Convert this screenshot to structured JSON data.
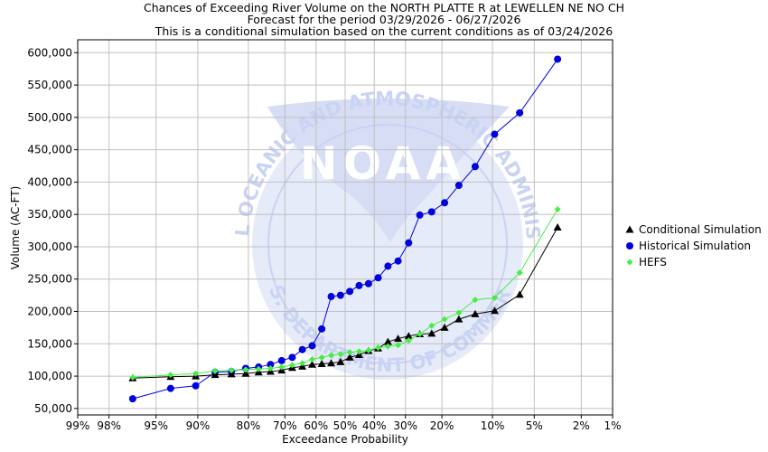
{
  "title_lines": [
    "Chances of Exceeding River Volume on the NORTH PLATTE R at LEWELLEN NE NO CH",
    "Forecast for the period 03/29/2026 - 06/27/2026",
    "This is a conditional simulation based on the current conditions as of 03/24/2026"
  ],
  "watermark": {
    "logo_text": "NOAA",
    "ring_top": "NATIONAL OCEANIC AND ATMOSPHERIC ADMINISTRATION",
    "ring_bottom": "U.S. DEPARTMENT OF COMMERCE",
    "colors": {
      "ring": "#c9d3f2",
      "bird": "#d6ddf5",
      "wave": "#e6ebf9"
    }
  },
  "chart_data": {
    "type": "line",
    "xlabel": "Exceedance Probability",
    "ylabel": "Volume (AC-FT)",
    "x_scale": "normal-probability",
    "x_ticks": [
      99,
      98,
      95,
      90,
      80,
      70,
      60,
      50,
      40,
      30,
      20,
      10,
      5,
      2,
      1
    ],
    "x_tick_labels": [
      "99%",
      "98%",
      "95%",
      "90%",
      "80%",
      "70%",
      "60%",
      "50%",
      "40%",
      "30%",
      "20%",
      "10%",
      "5%",
      "2%",
      "1%"
    ],
    "ylim": [
      40000,
      620000
    ],
    "y_ticks": [
      50000,
      100000,
      150000,
      200000,
      250000,
      300000,
      350000,
      400000,
      450000,
      500000,
      550000,
      600000
    ],
    "y_tick_labels": [
      "50,000",
      "100,000",
      "150,000",
      "200,000",
      "250,000",
      "300,000",
      "350,000",
      "400,000",
      "450,000",
      "500,000",
      "550,000",
      "600,000"
    ],
    "grid": true,
    "legend_position": "right",
    "x": [
      96.77,
      93.55,
      90.32,
      87.1,
      83.87,
      80.65,
      77.42,
      74.19,
      70.97,
      67.74,
      64.52,
      61.29,
      58.06,
      54.84,
      51.61,
      48.39,
      45.16,
      41.94,
      38.71,
      35.48,
      32.26,
      29.03,
      25.81,
      22.58,
      19.35,
      16.13,
      12.9,
      9.68,
      6.45,
      3.23
    ],
    "series": [
      {
        "name": "Conditional Simulation",
        "color": "#000000",
        "marker": "triangle",
        "values": [
          97000,
          99000,
          100000,
          102000,
          103000,
          104000,
          106000,
          107000,
          109000,
          113000,
          115000,
          118000,
          119000,
          120000,
          122000,
          129000,
          133000,
          139000,
          143000,
          153000,
          158000,
          162000,
          165000,
          166000,
          175000,
          188000,
          196000,
          201000,
          226000,
          330000
        ]
      },
      {
        "name": "Historical Simulation",
        "color": "#0000dd",
        "marker": "circle",
        "values": [
          65000,
          81000,
          85000,
          106000,
          107000,
          112000,
          114000,
          118000,
          124000,
          129000,
          141000,
          147000,
          173000,
          223000,
          225000,
          231000,
          240000,
          243000,
          252000,
          270000,
          278000,
          306000,
          349000,
          354000,
          368000,
          395000,
          424000,
          474000,
          507000,
          590000
        ]
      },
      {
        "name": "HEFS",
        "color": "#44ee44",
        "marker": "diamond",
        "values": [
          98000,
          102000,
          104000,
          108000,
          109000,
          110000,
          111000,
          112000,
          114000,
          117000,
          120000,
          126000,
          129000,
          132000,
          134000,
          137000,
          138000,
          140000,
          144000,
          146000,
          148000,
          155000,
          165000,
          178000,
          188000,
          198000,
          218000,
          221000,
          260000,
          358000
        ]
      }
    ]
  }
}
